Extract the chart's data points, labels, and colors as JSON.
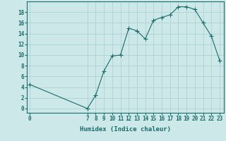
{
  "title": "",
  "xlabel": "Humidex (Indice chaleur)",
  "ylabel": "",
  "background_color": "#cce8e8",
  "line_color": "#1a6b6b",
  "marker": "+",
  "data_points": [
    [
      0,
      4.5
    ],
    [
      7,
      0
    ],
    [
      8,
      2.5
    ],
    [
      9,
      7
    ],
    [
      10,
      9.8
    ],
    [
      11,
      10
    ],
    [
      12,
      15
    ],
    [
      13,
      14.5
    ],
    [
      14,
      13
    ],
    [
      15,
      16.5
    ],
    [
      16,
      17
    ],
    [
      17,
      17.5
    ],
    [
      18,
      19
    ],
    [
      19,
      19
    ],
    [
      20,
      18.5
    ],
    [
      21,
      16
    ],
    [
      22,
      13.5
    ],
    [
      23,
      9
    ]
  ],
  "xlim": [
    -0.3,
    23.5
  ],
  "ylim": [
    -0.8,
    20
  ],
  "xticks": [
    0,
    7,
    8,
    9,
    10,
    11,
    12,
    13,
    14,
    15,
    16,
    17,
    18,
    19,
    20,
    21,
    22,
    23
  ],
  "yticks": [
    0,
    2,
    4,
    6,
    8,
    10,
    12,
    14,
    16,
    18
  ],
  "grid_color": "#aacece",
  "tick_label_fontsize": 5.5,
  "xlabel_fontsize": 6.5
}
